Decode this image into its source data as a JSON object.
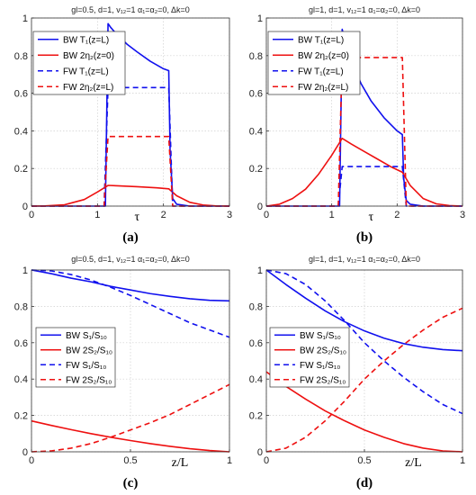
{
  "chart_data": [
    {
      "id": "a",
      "type": "line",
      "title": "gl=0.5, d=1, v₁₂=1 α₁=α₂=0, Δk=0",
      "xlabel": "τ",
      "ylabel": "",
      "panel_label": "(a)",
      "xlim": [
        0,
        3
      ],
      "ylim": [
        0,
        1
      ],
      "xticks": [
        0,
        1,
        2,
        3
      ],
      "yticks": [
        0,
        0.2,
        0.4,
        0.6,
        0.8,
        1
      ],
      "grid": true,
      "legend_position": "top-left",
      "series": [
        {
          "name": "BW T₁(z=L)",
          "color": "#1010ee",
          "dash": "solid",
          "x": [
            0,
            1.12,
            1.16,
            1.2,
            1.3,
            1.45,
            1.6,
            1.8,
            2.0,
            2.08,
            2.1,
            2.14,
            2.2,
            2.4,
            3.0
          ],
          "y": [
            0,
            0,
            0.97,
            0.95,
            0.91,
            0.86,
            0.82,
            0.77,
            0.73,
            0.72,
            0.3,
            0.04,
            0.01,
            0,
            0
          ]
        },
        {
          "name": "BW 2η₂(z=0)",
          "color": "#ee1010",
          "dash": "solid",
          "x": [
            0,
            0.2,
            0.5,
            0.8,
            1.0,
            1.16,
            1.3,
            1.6,
            1.9,
            2.08,
            2.2,
            2.4,
            2.6,
            2.8,
            3.0
          ],
          "y": [
            0,
            0.001,
            0.007,
            0.035,
            0.075,
            0.11,
            0.108,
            0.103,
            0.097,
            0.092,
            0.055,
            0.02,
            0.006,
            0.001,
            0
          ]
        },
        {
          "name": "FW T₁(z=L)",
          "color": "#1010ee",
          "dash": "dashed",
          "x": [
            0,
            1.1,
            1.16,
            2.08,
            2.14,
            3.0
          ],
          "y": [
            0,
            0,
            0.63,
            0.63,
            0,
            0
          ]
        },
        {
          "name": "FW 2η₂(z=L)",
          "color": "#ee1010",
          "dash": "dashed",
          "x": [
            0,
            1.1,
            1.16,
            2.08,
            2.14,
            3.0
          ],
          "y": [
            0,
            0,
            0.37,
            0.37,
            0,
            0
          ]
        }
      ]
    },
    {
      "id": "b",
      "type": "line",
      "title": "gl=1, d=1, v₁₂=1 α₁=α₂=0, Δk=0",
      "xlabel": "τ",
      "ylabel": "",
      "panel_label": "(b)",
      "xlim": [
        0,
        3
      ],
      "ylim": [
        0,
        1
      ],
      "xticks": [
        0,
        1,
        2,
        3
      ],
      "yticks": [
        0,
        0.2,
        0.4,
        0.6,
        0.8,
        1
      ],
      "grid": true,
      "legend_position": "top-left",
      "series": [
        {
          "name": "BW T₁(z=L)",
          "color": "#1010ee",
          "dash": "solid",
          "x": [
            0,
            1.12,
            1.16,
            1.2,
            1.3,
            1.45,
            1.6,
            1.8,
            2.0,
            2.08,
            2.1,
            2.14,
            2.2,
            2.4,
            3.0
          ],
          "y": [
            0,
            0,
            0.94,
            0.88,
            0.77,
            0.65,
            0.56,
            0.47,
            0.4,
            0.38,
            0.15,
            0.03,
            0.01,
            0,
            0
          ]
        },
        {
          "name": "BW 2η₂(z=0)",
          "color": "#ee1010",
          "dash": "solid",
          "x": [
            0,
            0.2,
            0.4,
            0.6,
            0.8,
            1.0,
            1.16,
            1.3,
            1.5,
            1.7,
            1.9,
            2.08,
            2.2,
            2.4,
            2.6,
            2.8,
            3.0
          ],
          "y": [
            0,
            0.01,
            0.04,
            0.09,
            0.17,
            0.27,
            0.36,
            0.33,
            0.29,
            0.25,
            0.21,
            0.18,
            0.11,
            0.04,
            0.012,
            0.003,
            0
          ]
        },
        {
          "name": "FW T₁(z=L)",
          "color": "#1010ee",
          "dash": "dashed",
          "x": [
            0,
            1.1,
            1.16,
            2.08,
            2.14,
            3.0
          ],
          "y": [
            0,
            0,
            0.21,
            0.21,
            0,
            0
          ]
        },
        {
          "name": "FW 2η₂(z=L)",
          "color": "#ee1010",
          "dash": "dashed",
          "x": [
            0,
            1.1,
            1.16,
            2.08,
            2.14,
            3.0
          ],
          "y": [
            0,
            0,
            0.79,
            0.79,
            0,
            0
          ]
        }
      ]
    },
    {
      "id": "c",
      "type": "line",
      "title": "gl=0.5, d=1, v₁₂=1 α₁=α₂=0, Δk=0",
      "xlabel": "z/L",
      "ylabel": "",
      "panel_label": "(c)",
      "xlim": [
        0,
        1
      ],
      "ylim": [
        0,
        1
      ],
      "xticks": [
        0,
        0.5,
        1
      ],
      "yticks": [
        0,
        0.2,
        0.4,
        0.6,
        0.8,
        1
      ],
      "grid": true,
      "legend_position": "center-left",
      "series": [
        {
          "name": "BW S₁/S₁₀",
          "color": "#1010ee",
          "dash": "solid",
          "x": [
            0,
            0.1,
            0.2,
            0.3,
            0.4,
            0.5,
            0.6,
            0.7,
            0.8,
            0.9,
            1.0
          ],
          "y": [
            1.0,
            0.98,
            0.955,
            0.935,
            0.91,
            0.89,
            0.87,
            0.855,
            0.842,
            0.833,
            0.83
          ]
        },
        {
          "name": "BW 2S₂/S₁₀",
          "color": "#ee1010",
          "dash": "solid",
          "x": [
            0,
            0.1,
            0.2,
            0.3,
            0.4,
            0.5,
            0.6,
            0.7,
            0.8,
            0.9,
            1.0
          ],
          "y": [
            0.17,
            0.145,
            0.122,
            0.1,
            0.08,
            0.062,
            0.045,
            0.03,
            0.017,
            0.007,
            0.0
          ]
        },
        {
          "name": "FW S₁/S₁₀",
          "color": "#1010ee",
          "dash": "dashed",
          "x": [
            0,
            0.1,
            0.2,
            0.3,
            0.4,
            0.5,
            0.6,
            0.7,
            0.8,
            0.9,
            1.0
          ],
          "y": [
            1.0,
            0.995,
            0.975,
            0.945,
            0.905,
            0.86,
            0.81,
            0.76,
            0.71,
            0.67,
            0.63
          ]
        },
        {
          "name": "FW 2S₂/S₁₀",
          "color": "#ee1010",
          "dash": "dashed",
          "x": [
            0,
            0.1,
            0.2,
            0.3,
            0.4,
            0.5,
            0.6,
            0.7,
            0.8,
            0.9,
            1.0
          ],
          "y": [
            0.0,
            0.005,
            0.02,
            0.045,
            0.08,
            0.12,
            0.16,
            0.205,
            0.26,
            0.315,
            0.37
          ]
        }
      ]
    },
    {
      "id": "d",
      "type": "line",
      "title": "gl=1, d=1, v₁₂=1 α₁=α₂=0, Δk=0",
      "xlabel": "z/L",
      "ylabel": "",
      "panel_label": "(d)",
      "xlim": [
        0,
        1
      ],
      "ylim": [
        0,
        1
      ],
      "xticks": [
        0,
        0.5,
        1
      ],
      "yticks": [
        0,
        0.2,
        0.4,
        0.6,
        0.8,
        1
      ],
      "grid": true,
      "legend_position": "center-left",
      "series": [
        {
          "name": "BW S₁/S₁₀",
          "color": "#1010ee",
          "dash": "solid",
          "x": [
            0,
            0.1,
            0.2,
            0.3,
            0.4,
            0.5,
            0.6,
            0.7,
            0.8,
            0.9,
            1.0
          ],
          "y": [
            1.0,
            0.92,
            0.845,
            0.775,
            0.715,
            0.665,
            0.625,
            0.595,
            0.575,
            0.562,
            0.556
          ]
        },
        {
          "name": "BW 2S₂/S₁₀",
          "color": "#ee1010",
          "dash": "solid",
          "x": [
            0,
            0.1,
            0.2,
            0.3,
            0.4,
            0.5,
            0.6,
            0.7,
            0.8,
            0.9,
            1.0
          ],
          "y": [
            0.44,
            0.36,
            0.29,
            0.225,
            0.17,
            0.12,
            0.08,
            0.045,
            0.02,
            0.005,
            0.0
          ]
        },
        {
          "name": "FW S₁/S₁₀",
          "color": "#1010ee",
          "dash": "dashed",
          "x": [
            0,
            0.1,
            0.2,
            0.3,
            0.4,
            0.5,
            0.6,
            0.7,
            0.8,
            0.9,
            1.0
          ],
          "y": [
            1.0,
            0.98,
            0.92,
            0.83,
            0.72,
            0.6,
            0.5,
            0.41,
            0.33,
            0.26,
            0.21
          ]
        },
        {
          "name": "FW 2S₂/S₁₀",
          "color": "#ee1010",
          "dash": "dashed",
          "x": [
            0,
            0.1,
            0.2,
            0.3,
            0.4,
            0.5,
            0.6,
            0.7,
            0.8,
            0.9,
            1.0
          ],
          "y": [
            0.0,
            0.02,
            0.08,
            0.17,
            0.28,
            0.4,
            0.5,
            0.59,
            0.67,
            0.74,
            0.79
          ]
        }
      ]
    }
  ]
}
